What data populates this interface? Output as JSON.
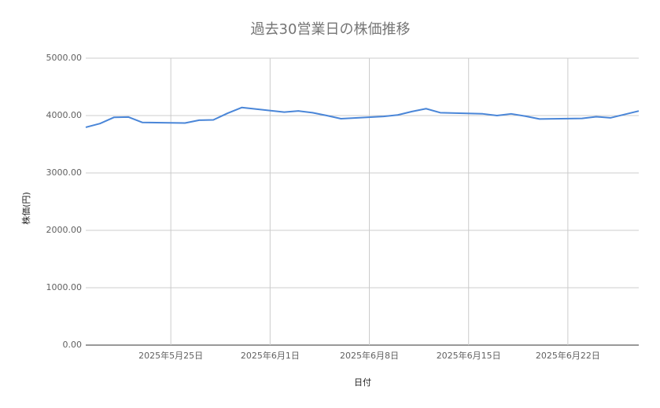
{
  "chart_data": {
    "type": "line",
    "title": "過去30営業日の株価推移",
    "x_label": "日付",
    "y_label": "株価(円)",
    "x": [
      "2025-05-19",
      "2025-05-20",
      "2025-05-21",
      "2025-05-22",
      "2025-05-23",
      "2025-05-26",
      "2025-05-27",
      "2025-05-28",
      "2025-05-29",
      "2025-05-30",
      "2025-06-02",
      "2025-06-03",
      "2025-06-04",
      "2025-06-05",
      "2025-06-06",
      "2025-06-09",
      "2025-06-10",
      "2025-06-11",
      "2025-06-12",
      "2025-06-13",
      "2025-06-16",
      "2025-06-17",
      "2025-06-18",
      "2025-06-19",
      "2025-06-20",
      "2025-06-23",
      "2025-06-24",
      "2025-06-25",
      "2025-06-26",
      "2025-06-27"
    ],
    "series": [
      {
        "name": "株価",
        "color": "#4a86d8",
        "values": [
          3795,
          3860,
          3970,
          3975,
          3880,
          3870,
          3920,
          3925,
          4040,
          4140,
          4060,
          4080,
          4050,
          4000,
          3945,
          3985,
          4010,
          4070,
          4120,
          4050,
          4030,
          4000,
          4030,
          3990,
          3940,
          3950,
          3980,
          3960,
          4020,
          4080
        ]
      }
    ],
    "xlim": [
      "2025-05-19",
      "2025-06-27"
    ],
    "xticks": [
      {
        "value": "2025-05-25",
        "label": "2025年5月25日"
      },
      {
        "value": "2025-06-01",
        "label": "2025年6月1日"
      },
      {
        "value": "2025-06-08",
        "label": "2025年6月8日"
      },
      {
        "value": "2025-06-15",
        "label": "2025年6月15日"
      },
      {
        "value": "2025-06-22",
        "label": "2025年6月22日"
      }
    ],
    "ylim": [
      0,
      5000
    ],
    "yticks": [
      {
        "value": 0,
        "label": "0.00"
      },
      {
        "value": 1000,
        "label": "1000.00"
      },
      {
        "value": 2000,
        "label": "2000.00"
      },
      {
        "value": 3000,
        "label": "3000.00"
      },
      {
        "value": 4000,
        "label": "4000.00"
      },
      {
        "value": 5000,
        "label": "5000.00"
      }
    ],
    "grid": true
  }
}
